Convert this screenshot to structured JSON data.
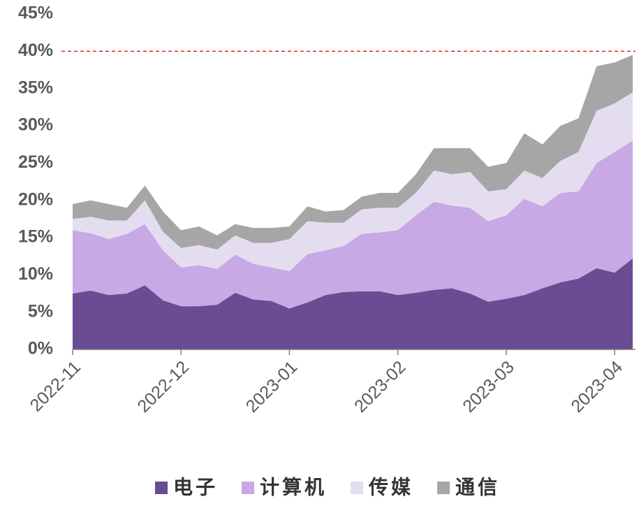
{
  "chart_data": {
    "type": "stacked_area",
    "categories": [
      "2022-11",
      null,
      null,
      null,
      null,
      null,
      "2022-12",
      null,
      null,
      null,
      null,
      null,
      "2023-01",
      null,
      null,
      null,
      null,
      null,
      "2023-02",
      null,
      null,
      null,
      null,
      null,
      "2023-03",
      null,
      null,
      null,
      null,
      null,
      "2023-04",
      null
    ],
    "series": [
      {
        "name": "电子",
        "color": "#6a4c93",
        "values": [
          7.5,
          7.9,
          7.3,
          7.5,
          8.6,
          6.6,
          5.8,
          5.8,
          6.0,
          7.6,
          6.7,
          6.5,
          5.5,
          6.3,
          7.3,
          7.7,
          7.8,
          7.8,
          7.3,
          7.6,
          8.0,
          8.2,
          7.5,
          6.4,
          6.8,
          7.3,
          8.2,
          9.0,
          9.5,
          10.9,
          10.3,
          12.2
        ]
      },
      {
        "name": "计算机",
        "color": "#c9a8e6",
        "values": [
          8.5,
          7.7,
          7.5,
          8.0,
          8.2,
          6.7,
          5.2,
          5.5,
          4.8,
          5.1,
          4.8,
          4.5,
          5.0,
          6.5,
          6.0,
          6.2,
          7.7,
          7.9,
          8.7,
          10.4,
          11.8,
          11.1,
          11.5,
          10.8,
          11.2,
          12.9,
          11.0,
          12.0,
          11.7,
          14.1,
          16.2,
          15.8
        ]
      },
      {
        "name": "传媒",
        "color": "#e4ddf0",
        "values": [
          1.5,
          2.2,
          2.5,
          1.8,
          3.2,
          2.5,
          2.6,
          2.7,
          2.6,
          2.6,
          2.8,
          3.3,
          4.3,
          4.4,
          3.7,
          3.1,
          3.3,
          3.3,
          3.0,
          3.0,
          4.2,
          4.2,
          4.8,
          4.0,
          3.5,
          3.8,
          3.8,
          4.3,
          5.3,
          7.0,
          6.5,
          6.5
        ]
      },
      {
        "name": "通信",
        "color": "#a6a6a6",
        "values": [
          2.0,
          2.2,
          2.2,
          1.7,
          2.0,
          2.7,
          2.4,
          2.5,
          1.9,
          1.5,
          2.0,
          2.0,
          1.7,
          2.0,
          1.5,
          1.7,
          1.7,
          2.0,
          2.0,
          2.5,
          3.0,
          3.5,
          3.2,
          3.3,
          3.5,
          5.0,
          4.5,
          4.7,
          4.5,
          6.0,
          5.5,
          5.0
        ]
      }
    ],
    "ylim": [
      0,
      45
    ],
    "yticks": [
      {
        "value": 0,
        "label": "0%"
      },
      {
        "value": 5,
        "label": "5%"
      },
      {
        "value": 10,
        "label": "10%"
      },
      {
        "value": 15,
        "label": "15%"
      },
      {
        "value": 20,
        "label": "20%"
      },
      {
        "value": 25,
        "label": "25%"
      },
      {
        "value": 30,
        "label": "30%"
      },
      {
        "value": 35,
        "label": "35%"
      },
      {
        "value": 40,
        "label": "40%"
      },
      {
        "value": 45,
        "label": "45%"
      }
    ],
    "reference_line": {
      "value": 40,
      "color": "#e02020"
    },
    "legend": "bottom"
  }
}
